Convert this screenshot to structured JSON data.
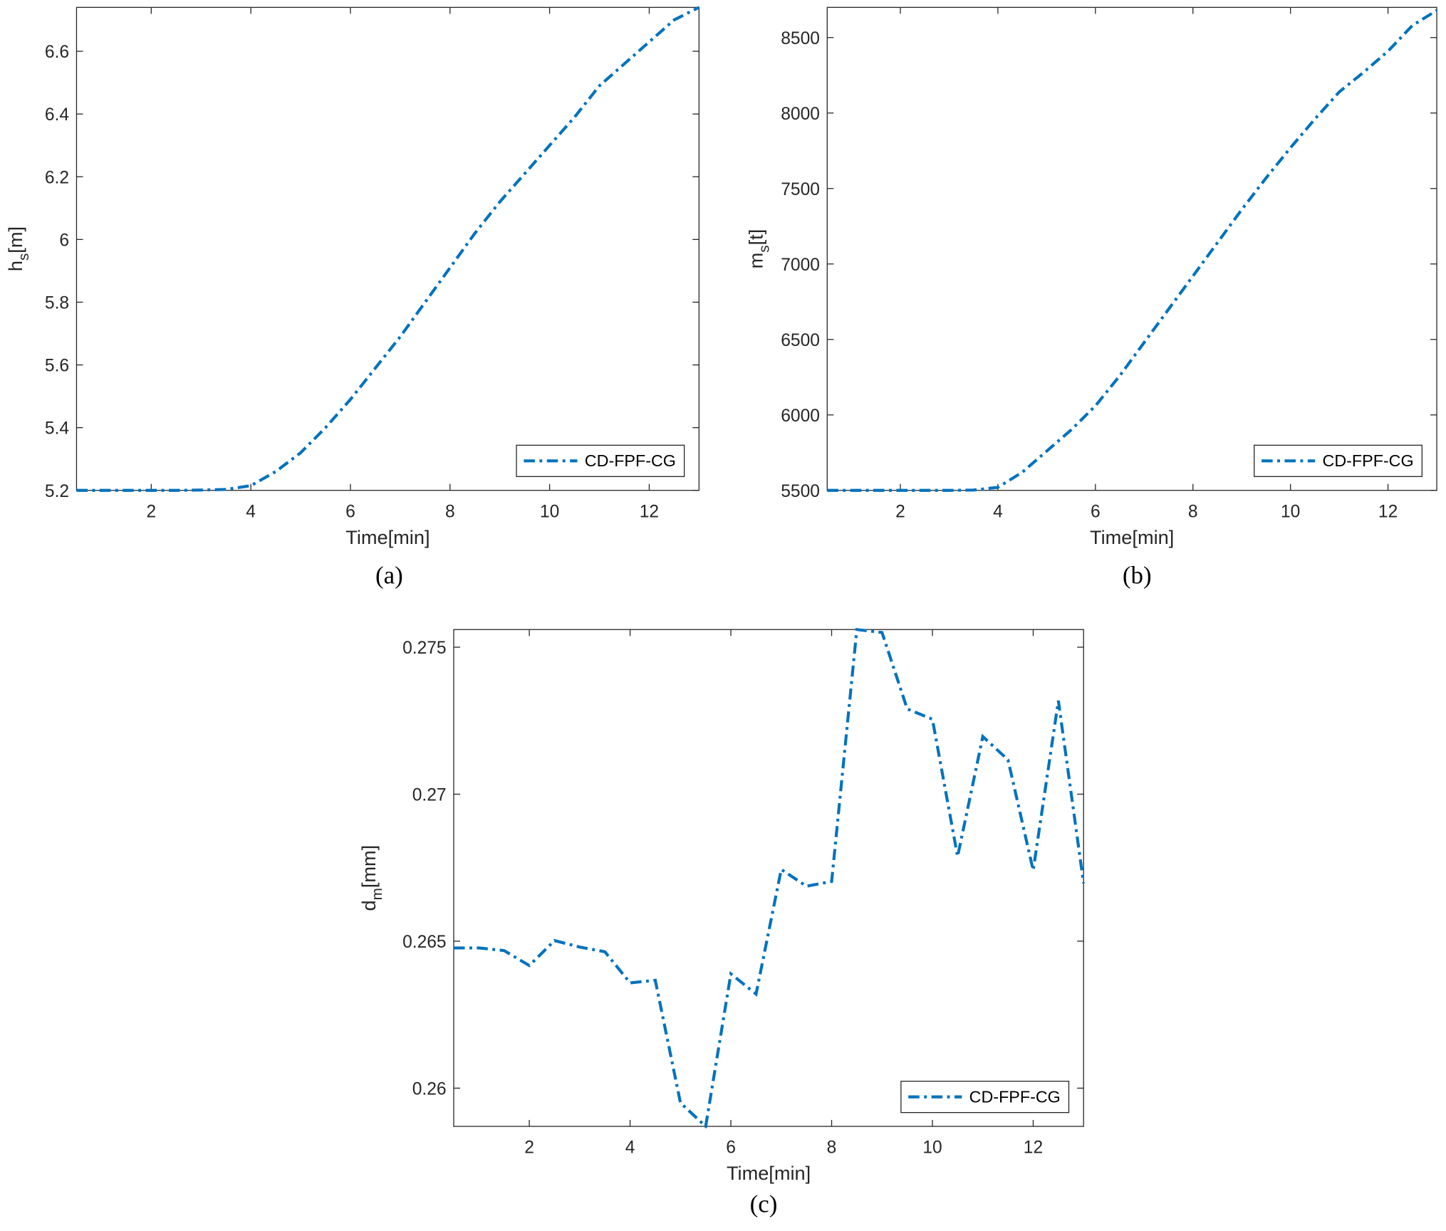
{
  "chart_data": [
    {
      "type": "line",
      "caption": "(a)",
      "xlabel": "Time[min]",
      "ylabel": {
        "base": "h",
        "subscript": "s",
        "unit": "[m]"
      },
      "x": [
        0.5,
        1,
        1.5,
        2,
        2.5,
        3,
        3.5,
        4,
        4.5,
        5,
        5.5,
        6,
        6.5,
        7,
        7.5,
        8,
        8.5,
        9,
        9.5,
        10,
        10.5,
        11,
        11.5,
        12,
        12.5,
        13
      ],
      "series": [
        {
          "name": "CD-FPF-CG",
          "color": "#0072bd",
          "values": [
            5.2,
            5.2,
            5.2,
            5.2,
            5.2,
            5.201,
            5.203,
            5.215,
            5.26,
            5.32,
            5.4,
            5.49,
            5.59,
            5.69,
            5.8,
            5.91,
            6.02,
            6.12,
            6.21,
            6.3,
            6.39,
            6.49,
            6.56,
            6.63,
            6.7,
            6.74
          ]
        }
      ],
      "xlim": [
        0.5,
        13
      ],
      "ylim": [
        5.2,
        6.74
      ],
      "xticks": [
        2,
        4,
        6,
        8,
        10,
        12
      ],
      "yticks": [
        5.2,
        5.4,
        5.6,
        5.8,
        6,
        6.2,
        6.4,
        6.6
      ],
      "legend": "lower right",
      "line_style": "dashdot"
    },
    {
      "type": "line",
      "caption": "(b)",
      "xlabel": "Time[min]",
      "ylabel": {
        "base": "m",
        "subscript": "s",
        "unit": "[t]"
      },
      "x": [
        0.5,
        1,
        1.5,
        2,
        2.5,
        3,
        3.5,
        4,
        4.5,
        5,
        5.5,
        6,
        6.5,
        7,
        7.5,
        8,
        8.5,
        9,
        9.5,
        10,
        10.5,
        11,
        11.5,
        12,
        12.5,
        13
      ],
      "series": [
        {
          "name": "CD-FPF-CG",
          "color": "#0072bd",
          "values": [
            5500,
            5500,
            5500,
            5500,
            5500,
            5500,
            5502,
            5520,
            5620,
            5760,
            5900,
            6060,
            6260,
            6480,
            6700,
            6920,
            7140,
            7360,
            7570,
            7770,
            7960,
            8140,
            8270,
            8410,
            8580,
            8680
          ]
        }
      ],
      "xlim": [
        0.5,
        13
      ],
      "ylim": [
        5500,
        8700
      ],
      "xticks": [
        2,
        4,
        6,
        8,
        10,
        12
      ],
      "yticks": [
        5500,
        6000,
        6500,
        7000,
        7500,
        8000,
        8500
      ],
      "legend": "lower right",
      "line_style": "dashdot"
    },
    {
      "type": "line",
      "caption": "(c)",
      "xlabel": "Time[min]",
      "ylabel": {
        "base": "d",
        "subscript": "m",
        "unit": "[mm]"
      },
      "x": [
        0.5,
        1,
        1.5,
        2,
        2.5,
        3,
        3.5,
        4,
        4.5,
        5,
        5.5,
        6,
        6.5,
        7,
        7.5,
        8,
        8.5,
        9,
        9.5,
        10,
        10.5,
        11,
        11.5,
        12,
        12.5,
        13
      ],
      "series": [
        {
          "name": "CD-FPF-CG",
          "color": "#0072bd",
          "values": [
            0.26477,
            0.26477,
            0.26468,
            0.26417,
            0.26502,
            0.2648,
            0.26464,
            0.26358,
            0.26367,
            0.2595,
            0.2587,
            0.26389,
            0.2632,
            0.26744,
            0.26687,
            0.26703,
            0.2756,
            0.2755,
            0.2729,
            0.27255,
            0.26788,
            0.27196,
            0.27117,
            0.26741,
            0.27318,
            0.26697
          ]
        }
      ],
      "xlim": [
        0.5,
        13
      ],
      "ylim": [
        0.2587,
        0.2756
      ],
      "xticks": [
        2,
        4,
        6,
        8,
        10,
        12
      ],
      "yticks": [
        0.26,
        0.265,
        0.27,
        0.275
      ],
      "legend": "lower right",
      "line_style": "dashdot"
    }
  ]
}
